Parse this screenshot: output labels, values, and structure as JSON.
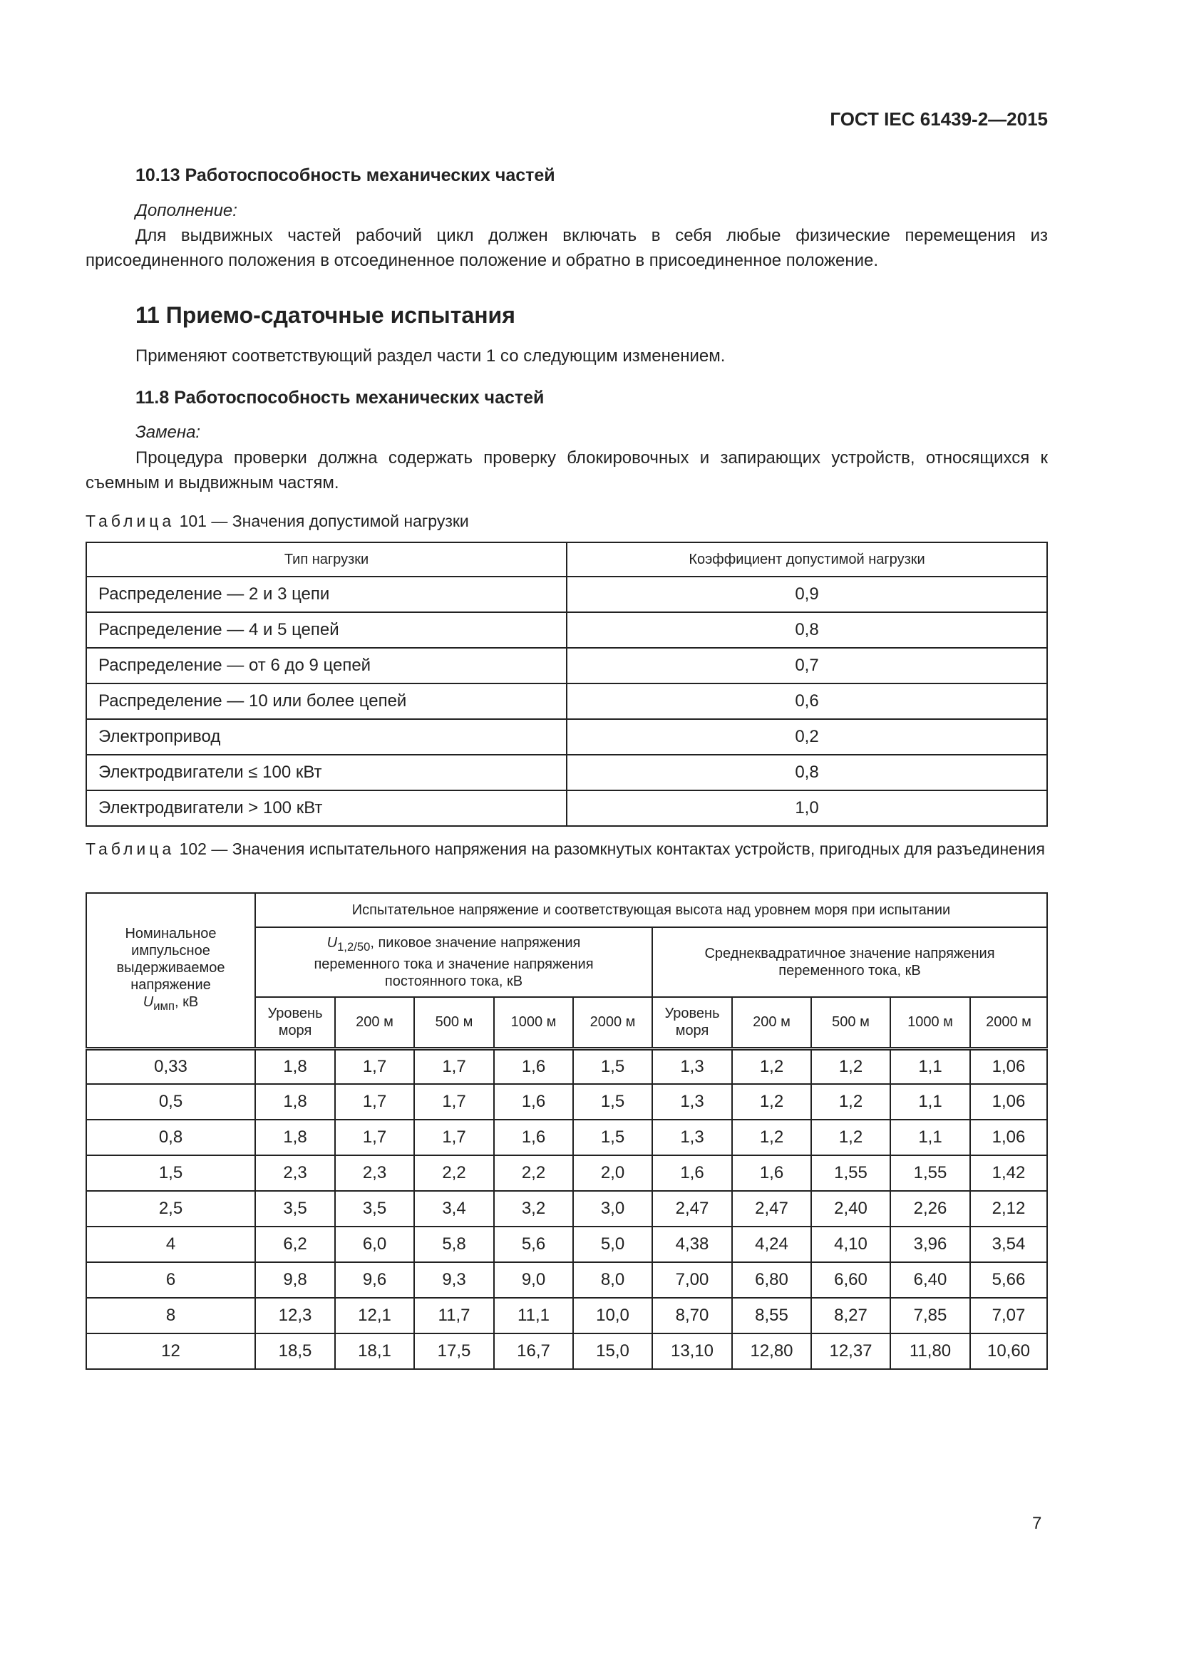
{
  "header": "ГОСТ IEC 61439-2—2015",
  "s1013": {
    "title": "10.13 Работоспособность механических частей",
    "label": "Дополнение:",
    "text": "Для выдвижных частей рабочий цикл должен включать в себя любые физические перемещения из присоединенного положения в отсоединенное положение и обратно в присоединенное положение."
  },
  "s11": {
    "title": "11 Приемо-сдаточные испытания",
    "text": "Применяют соответствующий раздел части 1 со следующим изменением."
  },
  "s118": {
    "title": "11.8 Работоспособность механических частей",
    "label": "Замена:",
    "text": "Процедура проверки должна содержать проверку блокировочных и запирающих устройств, относящихся к съемным и выдвижным частям."
  },
  "table101": {
    "caption_word": "Таблица",
    "caption": "101 — Значения допустимой нагрузки",
    "headers": [
      "Тип нагрузки",
      "Коэффициент допустимой нагрузки"
    ],
    "rows": [
      [
        "Распределение — 2 и 3 цепи",
        "0,9"
      ],
      [
        "Распределение — 4 и 5 цепей",
        "0,8"
      ],
      [
        "Распределение — от 6 до 9 цепей",
        "0,7"
      ],
      [
        "Распределение — 10 или более цепей",
        "0,6"
      ],
      [
        "Электропривод",
        "0,2"
      ],
      [
        "Электродвигатели ≤ 100 кВт",
        "0,8"
      ],
      [
        "Электродвигатели > 100 кВт",
        "1,0"
      ]
    ]
  },
  "table102": {
    "caption_word": "Таблица",
    "caption": "102 — Значения испытательного напряжения на разомкнутых контактах устройств, пригодных для разъединения",
    "col0": "Номинальное импульсное выдерживаемое напряжение",
    "col0_sym": "U",
    "col0_sub": "имп",
    "col0_unit": ", кВ",
    "group": "Испытательное напряжение и соответствующая высота над уровнем моря при испытании",
    "sub1_sym": "U",
    "sub1_sub": "1,2/50",
    "sub1": ", пиковое значение напряжения переменного тока и значение напряжения постоянного тока, кВ",
    "sub2": "Среднеквадратичное значение напряжения переменного тока, кВ",
    "alt": [
      "Уровень моря",
      "200 м",
      "500 м",
      "1000 м",
      "2000 м",
      "Уровень моря",
      "200 м",
      "500 м",
      "1000 м",
      "2000 м"
    ],
    "rows": [
      [
        "0,33",
        "1,8",
        "1,7",
        "1,7",
        "1,6",
        "1,5",
        "1,3",
        "1,2",
        "1,2",
        "1,1",
        "1,06"
      ],
      [
        "0,5",
        "1,8",
        "1,7",
        "1,7",
        "1,6",
        "1,5",
        "1,3",
        "1,2",
        "1,2",
        "1,1",
        "1,06"
      ],
      [
        "0,8",
        "1,8",
        "1,7",
        "1,7",
        "1,6",
        "1,5",
        "1,3",
        "1,2",
        "1,2",
        "1,1",
        "1,06"
      ],
      [
        "1,5",
        "2,3",
        "2,3",
        "2,2",
        "2,2",
        "2,0",
        "1,6",
        "1,6",
        "1,55",
        "1,55",
        "1,42"
      ],
      [
        "2,5",
        "3,5",
        "3,5",
        "3,4",
        "3,2",
        "3,0",
        "2,47",
        "2,47",
        "2,40",
        "2,26",
        "2,12"
      ],
      [
        "4",
        "6,2",
        "6,0",
        "5,8",
        "5,6",
        "5,0",
        "4,38",
        "4,24",
        "4,10",
        "3,96",
        "3,54"
      ],
      [
        "6",
        "9,8",
        "9,6",
        "9,3",
        "9,0",
        "8,0",
        "7,00",
        "6,80",
        "6,60",
        "6,40",
        "5,66"
      ],
      [
        "8",
        "12,3",
        "12,1",
        "11,7",
        "11,1",
        "10,0",
        "8,70",
        "8,55",
        "8,27",
        "7,85",
        "7,07"
      ],
      [
        "12",
        "18,5",
        "18,1",
        "17,5",
        "16,7",
        "15,0",
        "13,10",
        "12,80",
        "12,37",
        "11,80",
        "10,60"
      ]
    ]
  },
  "page_number": "7"
}
